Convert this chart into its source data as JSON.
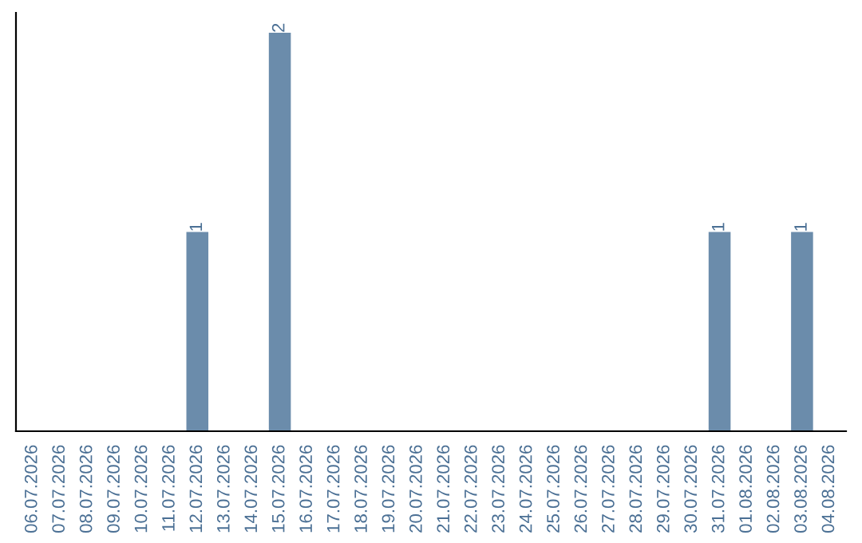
{
  "chart_data": {
    "type": "bar",
    "categories": [
      "06.07.2026",
      "07.07.2026",
      "08.07.2026",
      "09.07.2026",
      "10.07.2026",
      "11.07.2026",
      "12.07.2026",
      "13.07.2026",
      "14.07.2026",
      "15.07.2026",
      "16.07.2026",
      "17.07.2026",
      "18.07.2026",
      "19.07.2026",
      "20.07.2026",
      "21.07.2026",
      "22.07.2026",
      "23.07.2026",
      "24.07.2026",
      "25.07.2026",
      "26.07.2026",
      "27.07.2026",
      "28.07.2026",
      "29.07.2026",
      "30.07.2026",
      "31.07.2026",
      "01.08.2026",
      "02.08.2026",
      "03.08.2026",
      "04.08.2026"
    ],
    "values": [
      0,
      0,
      0,
      0,
      0,
      0,
      1,
      0,
      0,
      2,
      0,
      0,
      0,
      0,
      0,
      0,
      0,
      0,
      0,
      0,
      0,
      0,
      0,
      0,
      0,
      1,
      0,
      0,
      1,
      0
    ],
    "value_labels": [
      null,
      null,
      null,
      null,
      null,
      null,
      "1",
      null,
      null,
      "2",
      null,
      null,
      null,
      null,
      null,
      null,
      null,
      null,
      null,
      null,
      null,
      null,
      null,
      null,
      null,
      "1",
      null,
      null,
      "1",
      null
    ],
    "color": "#6b8cab",
    "grid": false,
    "legend": false
  }
}
